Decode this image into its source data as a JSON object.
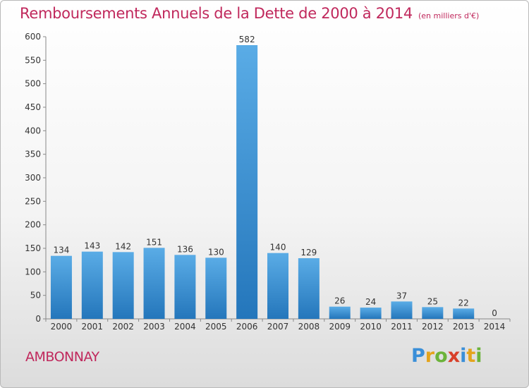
{
  "header": {
    "title": "Remboursements Annuels de la Dette de 2000 à 2014",
    "unit": "(en milliers d'€)"
  },
  "footer": {
    "town": "AMBONNAY"
  },
  "logo": {
    "text": "Proxiti",
    "letters": [
      {
        "char": "P",
        "color": "#3a8fd8"
      },
      {
        "char": "r",
        "color": "#e4a41c"
      },
      {
        "char": "o",
        "color": "#6bb33a"
      },
      {
        "char": "x",
        "color": "#d8402a"
      },
      {
        "char": "i",
        "color": "#3a8fd8"
      },
      {
        "char": "t",
        "color": "#e4a41c"
      },
      {
        "char": "i",
        "color": "#6bb33a"
      }
    ]
  },
  "chart_data": {
    "type": "bar",
    "title": "Remboursements Annuels de la Dette de 2000 à 2014",
    "subtitle": "(en milliers d'€)",
    "xlabel": "",
    "ylabel": "",
    "categories": [
      "2000",
      "2001",
      "2002",
      "2003",
      "2004",
      "2005",
      "2006",
      "2007",
      "2008",
      "2009",
      "2010",
      "2011",
      "2012",
      "2013",
      "2014"
    ],
    "values": [
      134,
      143,
      142,
      151,
      136,
      130,
      582,
      140,
      129,
      26,
      24,
      37,
      25,
      22,
      0
    ],
    "data_labels": [
      "134",
      "143",
      "142",
      "151",
      "136",
      "130",
      "582",
      "140",
      "129",
      "26",
      "24",
      "37",
      "25",
      "22",
      "0"
    ],
    "ylim": [
      0,
      600
    ],
    "yticks": [
      0,
      50,
      100,
      150,
      200,
      250,
      300,
      350,
      400,
      450,
      500,
      550,
      600
    ],
    "grid": false,
    "bar_color_light": "#5aace6",
    "bar_color_dark": "#2476bb"
  }
}
